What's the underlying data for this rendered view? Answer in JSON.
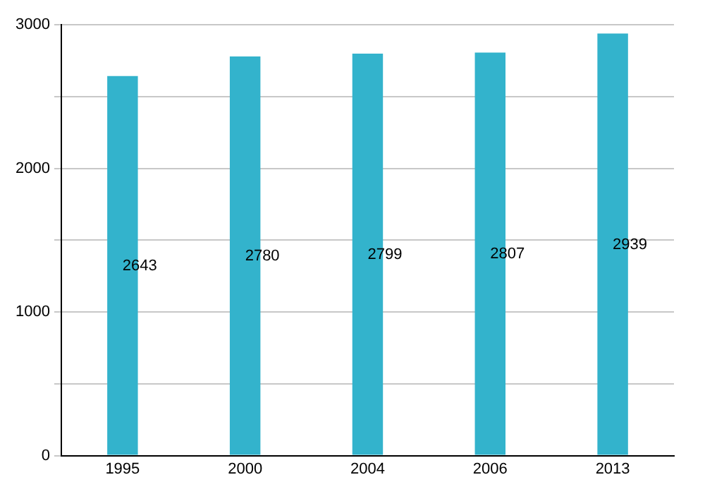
{
  "chart_data": {
    "type": "bar",
    "categories": [
      "1995",
      "2000",
      "2004",
      "2006",
      "2013"
    ],
    "values": [
      2643,
      2780,
      2799,
      2807,
      2939
    ],
    "color": "#33b3cc",
    "ylim": [
      0,
      3000
    ],
    "yticks": [
      0,
      {
        "value": 500,
        "label": null
      },
      1000,
      {
        "value": 1500,
        "label": null
      },
      2000,
      {
        "value": 2500,
        "label": null
      },
      3000
    ],
    "grid": "y",
    "data_labels": true
  }
}
